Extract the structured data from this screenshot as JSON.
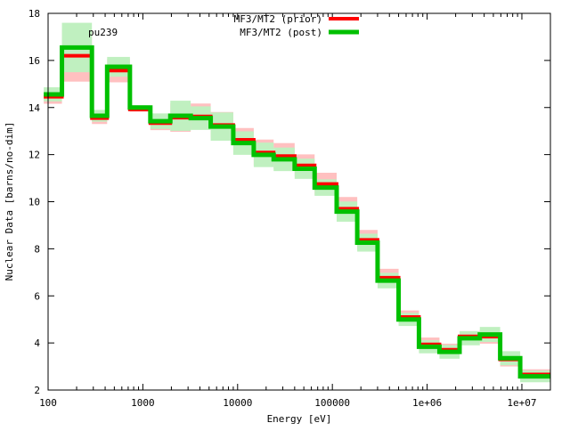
{
  "chart_data": {
    "type": "line",
    "step": true,
    "title": "",
    "annotation": "pu239",
    "xlabel": "Energy [eV]",
    "ylabel": "Nuclear Data [barns/no-dim]",
    "xscale": "log",
    "xlim": [
      100,
      20000000
    ],
    "ylim": [
      2,
      18
    ],
    "x_ticks": [
      100,
      1000,
      10000,
      100000,
      1000000,
      10000000
    ],
    "x_tick_labels": [
      "100",
      "1000",
      "10000",
      "100000",
      "1e+06",
      "1e+07"
    ],
    "y_ticks": [
      2,
      4,
      6,
      8,
      10,
      12,
      14,
      16,
      18
    ],
    "y_tick_labels": [
      "2",
      "4",
      "6",
      "8",
      "10",
      "12",
      "14",
      "16",
      "18"
    ],
    "legend_position": "top-center",
    "bin_edges": [
      90,
      140,
      290,
      420,
      730,
      1200,
      1950,
      3200,
      5200,
      9000,
      14800,
      24000,
      40000,
      65000,
      111000,
      183000,
      300000,
      500000,
      820000,
      1350000,
      2200000,
      3600000,
      5900000,
      9600000,
      20000000
    ],
    "series": [
      {
        "name": "MF3/MT2 (prior)",
        "color": "#ff0000",
        "band_color": "#ffc0c0",
        "values": [
          14.46,
          16.2,
          13.55,
          15.57,
          13.92,
          13.34,
          13.57,
          13.62,
          13.26,
          12.63,
          12.09,
          11.94,
          11.54,
          10.75,
          9.7,
          8.38,
          6.77,
          5.1,
          3.94,
          3.71,
          4.28,
          4.27,
          3.3,
          2.66
        ],
        "uncertainty": [
          0.3,
          1.1,
          0.25,
          0.5,
          0.1,
          0.3,
          0.6,
          0.55,
          0.55,
          0.5,
          0.55,
          0.55,
          0.47,
          0.48,
          0.5,
          0.42,
          0.38,
          0.28,
          0.29,
          0.26,
          0.22,
          0.3,
          0.3,
          0.22
        ]
      },
      {
        "name": "MF3/MT2 (post)",
        "color": "#00c000",
        "band_color": "#c0f0c0",
        "values": [
          14.56,
          16.55,
          13.65,
          15.73,
          14.0,
          13.42,
          13.65,
          13.55,
          13.19,
          12.49,
          11.99,
          11.8,
          11.4,
          10.6,
          9.58,
          8.26,
          6.65,
          5.0,
          3.84,
          3.62,
          4.2,
          4.36,
          3.35,
          2.58
        ],
        "uncertainty": [
          0.3,
          1.05,
          0.25,
          0.42,
          0.1,
          0.33,
          0.64,
          0.5,
          0.6,
          0.5,
          0.52,
          0.5,
          0.43,
          0.35,
          0.43,
          0.38,
          0.33,
          0.28,
          0.28,
          0.29,
          0.3,
          0.32,
          0.3,
          0.25
        ]
      }
    ]
  }
}
